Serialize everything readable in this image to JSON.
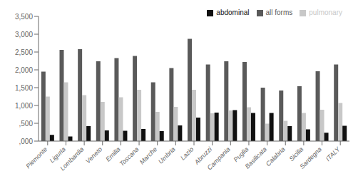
{
  "chart_data": {
    "type": "bar",
    "categories": [
      "Piemonte",
      "Liguria",
      "Lombardia",
      "Veneto",
      "Emilia",
      "Toscana",
      "Marche",
      "Umbria",
      "Lazio",
      "Abruzzi",
      "Campania",
      "Puglia",
      "Basilicata",
      "Calabria",
      "Sicilia",
      "Sardegna",
      "ITALY"
    ],
    "series": [
      {
        "name": "all forms",
        "color": "#5a5a5a",
        "values": [
          1950,
          2560,
          2580,
          2240,
          2330,
          2390,
          1650,
          2050,
          2870,
          2150,
          2240,
          2220,
          1500,
          1420,
          1540,
          1960,
          2150
        ]
      },
      {
        "name": "pulmonary",
        "color": "#c8c8c8",
        "values": [
          1250,
          1650,
          1290,
          1100,
          1230,
          1440,
          820,
          960,
          1440,
          780,
          860,
          950,
          490,
          570,
          790,
          880,
          1070
        ]
      },
      {
        "name": "abdominal",
        "color": "#111111",
        "values": [
          175,
          130,
          420,
          300,
          290,
          340,
          280,
          440,
          660,
          800,
          870,
          790,
          790,
          420,
          330,
          235,
          430
        ]
      }
    ],
    "ylim": [
      0,
      3500
    ],
    "yticks": [
      {
        "value": 0,
        "label": ",000"
      },
      {
        "value": 500,
        "label": ",500"
      },
      {
        "value": 1000,
        "label": "1,000"
      },
      {
        "value": 1500,
        "label": "1,500"
      },
      {
        "value": 2000,
        "label": "2,000"
      },
      {
        "value": 2500,
        "label": "2,500"
      },
      {
        "value": 3000,
        "label": "3,000"
      },
      {
        "value": 3500,
        "label": "3,500"
      }
    ],
    "legend": "upper right"
  }
}
